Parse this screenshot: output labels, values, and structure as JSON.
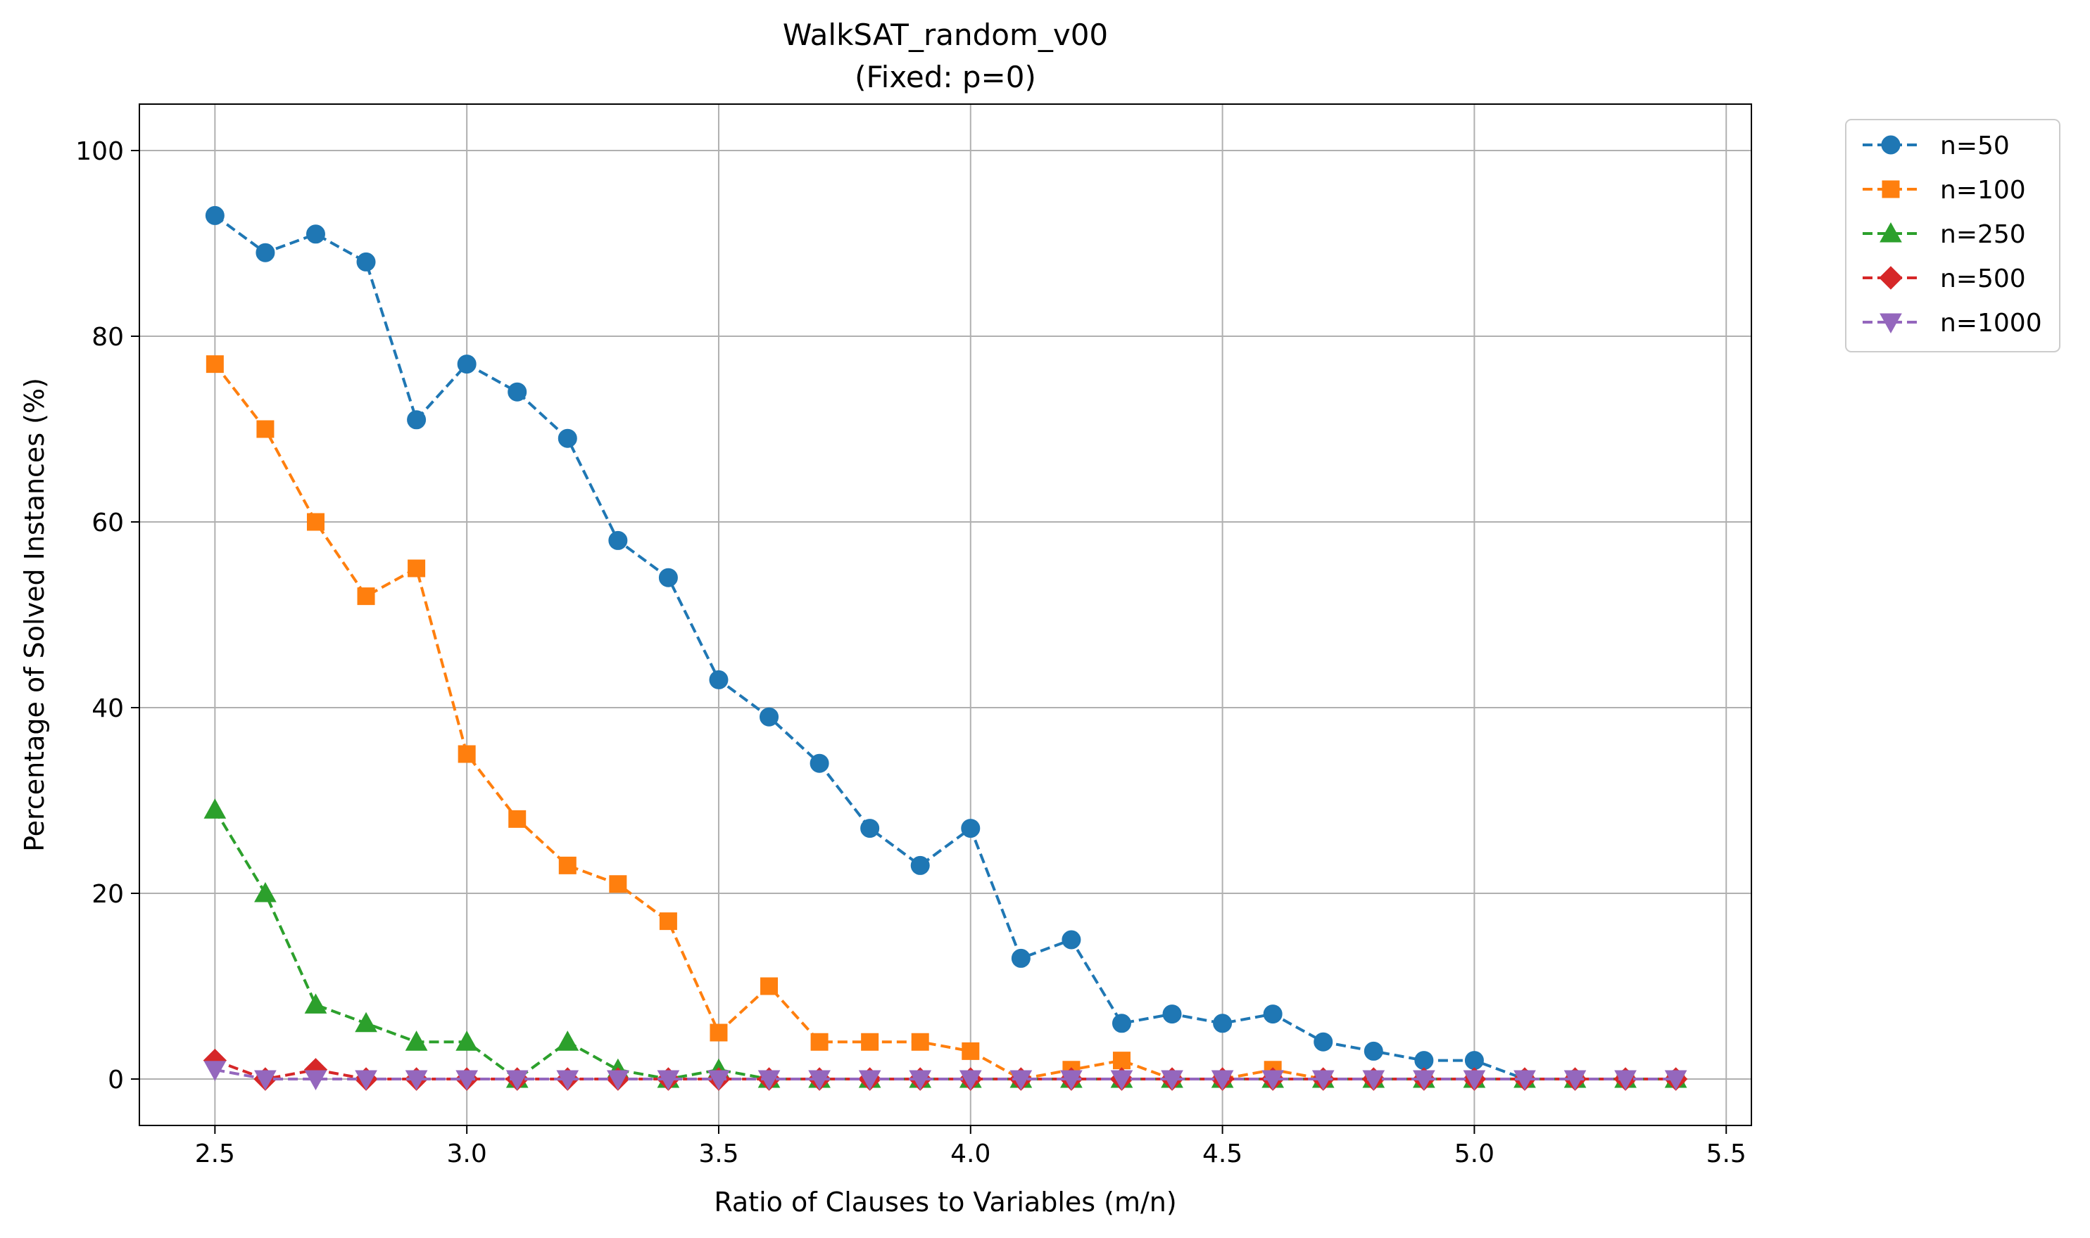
{
  "chart_data": {
    "type": "line",
    "title": "WalkSAT_random_v00",
    "subtitle": "(Fixed: p=0)",
    "xlabel": "Ratio of Clauses to Variables (m/n)",
    "ylabel": "Percentage of Solved Instances (%)",
    "xlim": [
      2.35,
      5.55
    ],
    "ylim": [
      -5,
      105
    ],
    "xticks": [
      2.5,
      3.0,
      3.5,
      4.0,
      4.5,
      5.0,
      5.5
    ],
    "xtick_labels": [
      "2.5",
      "3.0",
      "3.5",
      "4.0",
      "4.5",
      "5.0",
      "5.5"
    ],
    "yticks": [
      0,
      20,
      40,
      60,
      80,
      100
    ],
    "ytick_labels": [
      "0",
      "20",
      "40",
      "60",
      "80",
      "100"
    ],
    "grid": true,
    "legend_position": "outside-top-right",
    "line_style": "dashed",
    "x": [
      2.5,
      2.6,
      2.7,
      2.8,
      2.9,
      3.0,
      3.1,
      3.2,
      3.3,
      3.4,
      3.5,
      3.6,
      3.7,
      3.8,
      3.9,
      4.0,
      4.1,
      4.2,
      4.3,
      4.4,
      4.5,
      4.6,
      4.7,
      4.8,
      4.9,
      5.0,
      5.1,
      5.2,
      5.3,
      5.4
    ],
    "series": [
      {
        "name": "n=50",
        "marker": "circle",
        "color": "#1f77b4",
        "values": [
          93,
          89,
          91,
          88,
          71,
          77,
          74,
          69,
          58,
          54,
          43,
          39,
          34,
          27,
          23,
          27,
          13,
          15,
          6,
          7,
          6,
          7,
          4,
          3,
          2,
          2,
          0,
          0,
          0,
          0
        ]
      },
      {
        "name": "n=100",
        "marker": "square",
        "color": "#ff7f0e",
        "values": [
          77,
          70,
          60,
          52,
          55,
          35,
          28,
          23,
          21,
          17,
          5,
          10,
          4,
          4,
          4,
          3,
          0,
          1,
          2,
          0,
          0,
          1,
          0,
          0,
          0,
          0,
          0,
          0,
          0,
          0
        ]
      },
      {
        "name": "n=250",
        "marker": "triangle-up",
        "color": "#2ca02c",
        "values": [
          29,
          20,
          8,
          6,
          4,
          4,
          0,
          4,
          1,
          0,
          1,
          0,
          0,
          0,
          0,
          0,
          0,
          0,
          0,
          0,
          0,
          0,
          0,
          0,
          0,
          0,
          0,
          0,
          0,
          0
        ]
      },
      {
        "name": "n=500",
        "marker": "diamond",
        "color": "#d62728",
        "values": [
          2,
          0,
          1,
          0,
          0,
          0,
          0,
          0,
          0,
          0,
          0,
          0,
          0,
          0,
          0,
          0,
          0,
          0,
          0,
          0,
          0,
          0,
          0,
          0,
          0,
          0,
          0,
          0,
          0,
          0
        ]
      },
      {
        "name": "n=1000",
        "marker": "triangle-down",
        "color": "#9467bd",
        "values": [
          1,
          0,
          0,
          0,
          0,
          0,
          0,
          0,
          0,
          0,
          0,
          0,
          0,
          0,
          0,
          0,
          0,
          0,
          0,
          0,
          0,
          0,
          0,
          0,
          0,
          0,
          0,
          0,
          0,
          0
        ]
      }
    ]
  }
}
